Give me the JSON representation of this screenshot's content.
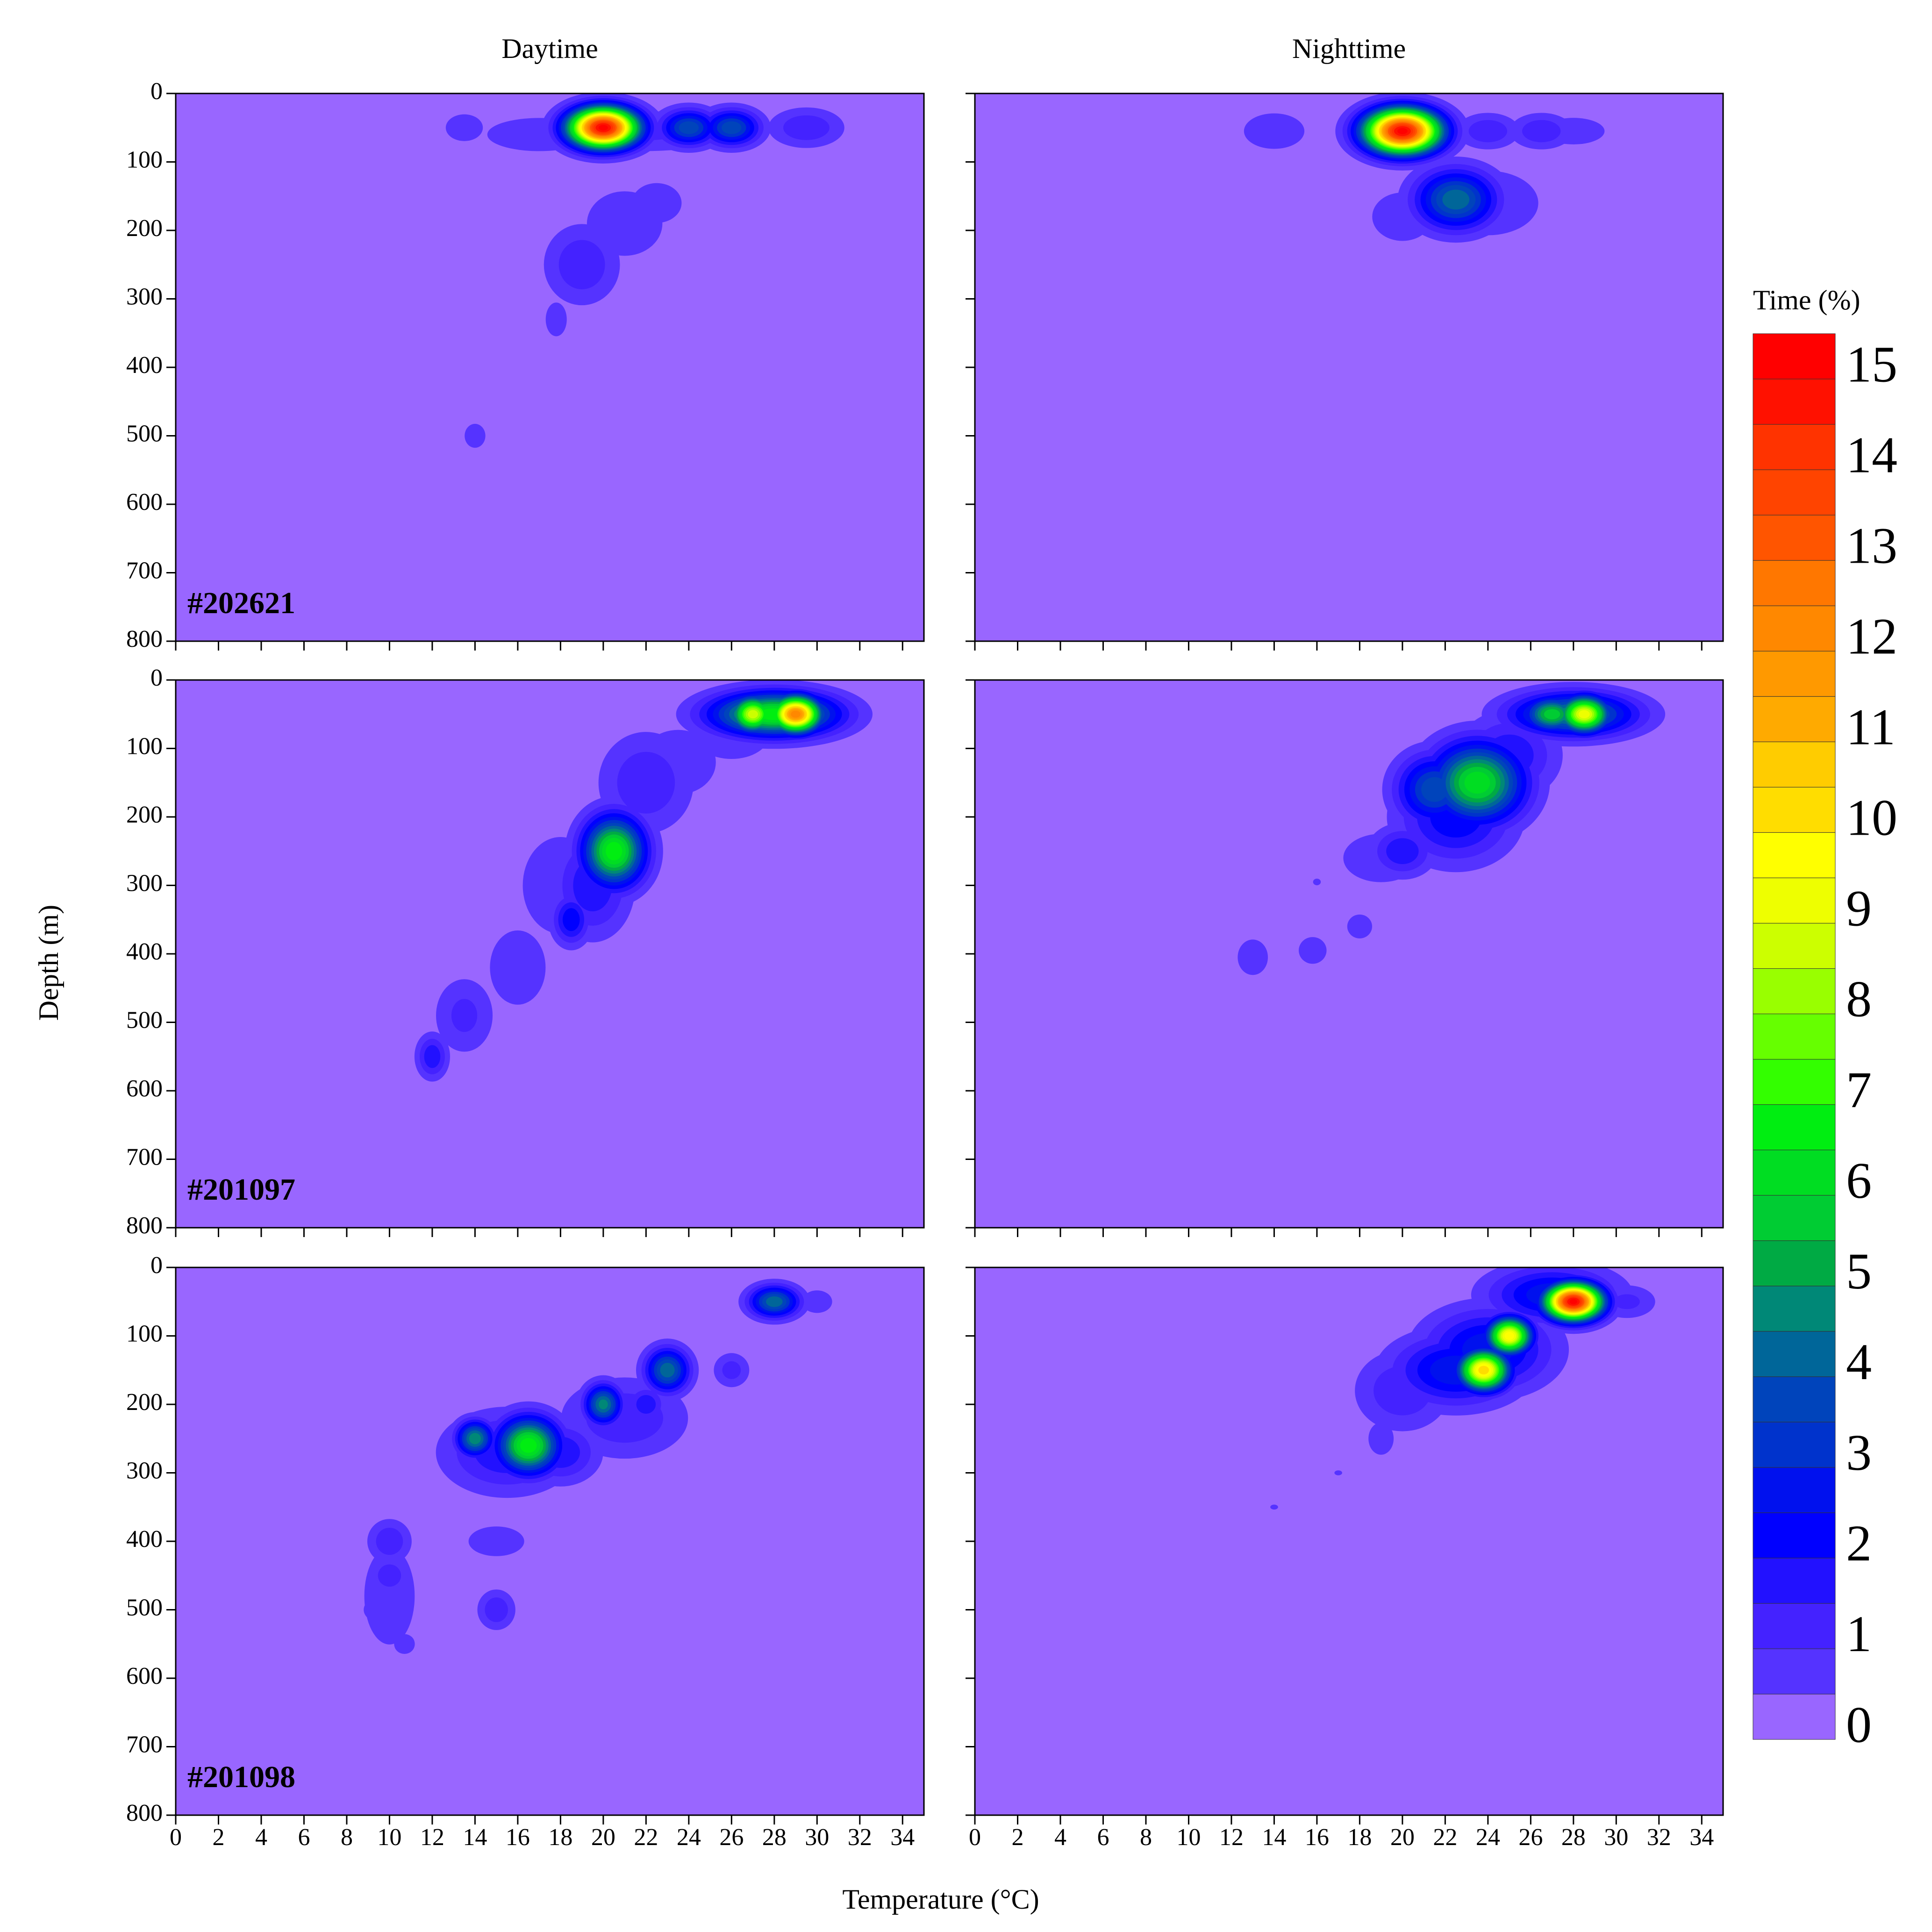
{
  "figure": {
    "xlabel": "Temperature (°C)",
    "ylabel": "Depth (m)"
  },
  "colorbar": {
    "title": "Time (%)",
    "levels": [
      0,
      0.5,
      1,
      1.5,
      2,
      2.5,
      3,
      3.5,
      4,
      4.5,
      5,
      5.5,
      6,
      6.5,
      7,
      7.5,
      8,
      8.5,
      9,
      9.5,
      10,
      10.5,
      11,
      11.5,
      12,
      12.5,
      13,
      13.5,
      14,
      14.5,
      15,
      15.5
    ],
    "colors": [
      "#9966ff",
      "#5533ff",
      "#4422ff",
      "#2211ff",
      "#0000ff",
      "#0011ee",
      "#0033cc",
      "#0044bb",
      "#006699",
      "#008877",
      "#00aa44",
      "#00cc33",
      "#00dd22",
      "#00ee11",
      "#33ff00",
      "#66ff00",
      "#99ff00",
      "#ccff00",
      "#eeff00",
      "#ffff00",
      "#ffdd00",
      "#ffcc00",
      "#ffaa00",
      "#ff9900",
      "#ff8800",
      "#ff7700",
      "#ff5500",
      "#ff4400",
      "#ff3300",
      "#ff1100",
      "#ff0000"
    ],
    "ticks": [
      0,
      1,
      2,
      3,
      4,
      5,
      6,
      7,
      8,
      9,
      10,
      11,
      12,
      13,
      14,
      15
    ]
  },
  "chart_data": [
    {
      "type": "contour",
      "title": "Daytime",
      "label": "#202621",
      "xlim": [
        0,
        35
      ],
      "ylim": [
        800,
        0
      ],
      "xticks": [
        0,
        2,
        4,
        6,
        8,
        10,
        12,
        14,
        16,
        18,
        20,
        22,
        24,
        26,
        28,
        30,
        32,
        34
      ],
      "yticks": [
        0,
        100,
        200,
        300,
        400,
        500,
        600,
        700,
        800
      ],
      "peaks": [
        {
          "x": 20,
          "y": 50,
          "value": 15.3,
          "spread": [
            1.1,
            20
          ]
        },
        {
          "x": 24,
          "y": 50,
          "value": 4,
          "spread": [
            0.9,
            18
          ]
        },
        {
          "x": 26,
          "y": 50,
          "value": 4,
          "spread": [
            0.9,
            18
          ]
        },
        {
          "x": 29.5,
          "y": 50,
          "value": 1.5,
          "spread": [
            1.2,
            20
          ]
        },
        {
          "x": 13.5,
          "y": 50,
          "value": 0.9,
          "spread": [
            0.8,
            18
          ]
        },
        {
          "x": 22,
          "y": 55,
          "value": 1.2,
          "spread": [
            3,
            22
          ]
        },
        {
          "x": 17,
          "y": 60,
          "value": 0.8,
          "spread": [
            2.5,
            25
          ]
        },
        {
          "x": 19,
          "y": 250,
          "value": 1.5,
          "spread": [
            1.2,
            40
          ]
        },
        {
          "x": 21,
          "y": 190,
          "value": 1,
          "spread": [
            1.5,
            40
          ]
        },
        {
          "x": 22.5,
          "y": 160,
          "value": 0.8,
          "spread": [
            1.2,
            30
          ]
        },
        {
          "x": 17.8,
          "y": 330,
          "value": 0.7,
          "spread": [
            0.6,
            30
          ]
        },
        {
          "x": 14,
          "y": 500,
          "value": 0.8,
          "spread": [
            0.5,
            18
          ]
        }
      ]
    },
    {
      "type": "contour",
      "title": "Nighttime",
      "xlim": [
        0,
        35
      ],
      "ylim": [
        800,
        0
      ],
      "xticks": [
        0,
        2,
        4,
        6,
        8,
        10,
        12,
        14,
        16,
        18,
        20,
        22,
        24,
        26,
        28,
        30,
        32,
        34
      ],
      "yticks": [
        0,
        100,
        200,
        300,
        400,
        500,
        600,
        700,
        800
      ],
      "peaks": [
        {
          "x": 20,
          "y": 55,
          "value": 15.3,
          "spread": [
            1.2,
            22
          ]
        },
        {
          "x": 22.5,
          "y": 155,
          "value": 4.5,
          "spread": [
            1.3,
            30
          ]
        },
        {
          "x": 24,
          "y": 55,
          "value": 1.5,
          "spread": [
            1,
            18
          ]
        },
        {
          "x": 26.5,
          "y": 55,
          "value": 1.5,
          "spread": [
            1,
            18
          ]
        },
        {
          "x": 14,
          "y": 55,
          "value": 1,
          "spread": [
            1.2,
            22
          ]
        },
        {
          "x": 28,
          "y": 55,
          "value": 0.8,
          "spread": [
            1.5,
            20
          ]
        },
        {
          "x": 20,
          "y": 180,
          "value": 1,
          "spread": [
            1.2,
            30
          ]
        },
        {
          "x": 24,
          "y": 160,
          "value": 1,
          "spread": [
            2,
            40
          ]
        }
      ]
    },
    {
      "type": "contour",
      "label": "#201097",
      "xlim": [
        0,
        35
      ],
      "ylim": [
        800,
        0
      ],
      "xticks": [
        0,
        2,
        4,
        6,
        8,
        10,
        12,
        14,
        16,
        18,
        20,
        22,
        24,
        26,
        28,
        30,
        32,
        34
      ],
      "yticks": [
        0,
        100,
        200,
        300,
        400,
        500,
        600,
        700,
        800
      ],
      "peaks": [
        {
          "x": 29,
          "y": 50,
          "value": 12.5,
          "spread": [
            0.8,
            18
          ]
        },
        {
          "x": 27,
          "y": 50,
          "value": 9,
          "spread": [
            0.7,
            18
          ]
        },
        {
          "x": 28,
          "y": 50,
          "value": 7,
          "spread": [
            2,
            22
          ]
        },
        {
          "x": 26,
          "y": 80,
          "value": 1,
          "spread": [
            1.5,
            30
          ]
        },
        {
          "x": 20.5,
          "y": 250,
          "value": 7,
          "spread": [
            1,
            35
          ]
        },
        {
          "x": 19.5,
          "y": 300,
          "value": 2,
          "spread": [
            1.2,
            50
          ]
        },
        {
          "x": 18.5,
          "y": 350,
          "value": 2.5,
          "spread": [
            0.6,
            25
          ]
        },
        {
          "x": 22,
          "y": 150,
          "value": 1.5,
          "spread": [
            1.5,
            50
          ]
        },
        {
          "x": 23.5,
          "y": 120,
          "value": 1,
          "spread": [
            1.5,
            40
          ]
        },
        {
          "x": 18,
          "y": 300,
          "value": 1,
          "spread": [
            1.5,
            60
          ]
        },
        {
          "x": 16,
          "y": 420,
          "value": 0.9,
          "spread": [
            1.2,
            50
          ]
        },
        {
          "x": 13.5,
          "y": 490,
          "value": 1.2,
          "spread": [
            1,
            40
          ]
        },
        {
          "x": 12,
          "y": 550,
          "value": 2,
          "spread": [
            0.5,
            22
          ]
        }
      ]
    },
    {
      "type": "contour",
      "xlim": [
        0,
        35
      ],
      "ylim": [
        800,
        0
      ],
      "xticks": [
        0,
        2,
        4,
        6,
        8,
        10,
        12,
        14,
        16,
        18,
        20,
        22,
        24,
        26,
        28,
        30,
        32,
        34
      ],
      "yticks": [
        0,
        100,
        200,
        300,
        400,
        500,
        600,
        700,
        800
      ],
      "peaks": [
        {
          "x": 28.5,
          "y": 50,
          "value": 9.5,
          "spread": [
            0.8,
            18
          ]
        },
        {
          "x": 27,
          "y": 50,
          "value": 6,
          "spread": [
            0.9,
            18
          ]
        },
        {
          "x": 28,
          "y": 50,
          "value": 5,
          "spread": [
            2,
            22
          ]
        },
        {
          "x": 23.5,
          "y": 150,
          "value": 6.5,
          "spread": [
            1.5,
            40
          ]
        },
        {
          "x": 21.5,
          "y": 160,
          "value": 4,
          "spread": [
            1.2,
            35
          ]
        },
        {
          "x": 22.5,
          "y": 200,
          "value": 2.5,
          "spread": [
            1.8,
            45
          ]
        },
        {
          "x": 25,
          "y": 110,
          "value": 2,
          "spread": [
            1.5,
            40
          ]
        },
        {
          "x": 20,
          "y": 250,
          "value": 2,
          "spread": [
            1,
            25
          ]
        },
        {
          "x": 19,
          "y": 260,
          "value": 1,
          "spread": [
            1.5,
            30
          ]
        },
        {
          "x": 16,
          "y": 295,
          "value": 0.6,
          "spread": [
            0.3,
            8
          ]
        },
        {
          "x": 18,
          "y": 360,
          "value": 0.8,
          "spread": [
            0.6,
            18
          ]
        },
        {
          "x": 15.8,
          "y": 395,
          "value": 0.9,
          "spread": [
            0.6,
            18
          ]
        },
        {
          "x": 13,
          "y": 405,
          "value": 1,
          "spread": [
            0.6,
            22
          ]
        }
      ]
    },
    {
      "type": "contour",
      "label": "#201098",
      "xlim": [
        0,
        35
      ],
      "ylim": [
        800,
        0
      ],
      "xticks": [
        0,
        2,
        4,
        6,
        8,
        10,
        12,
        14,
        16,
        18,
        20,
        22,
        24,
        26,
        28,
        30,
        32,
        34
      ],
      "yticks": [
        0,
        100,
        200,
        300,
        400,
        500,
        600,
        700,
        800
      ],
      "peaks": [
        {
          "x": 28,
          "y": 50,
          "value": 4.5,
          "spread": [
            0.8,
            16
          ]
        },
        {
          "x": 30,
          "y": 50,
          "value": 1,
          "spread": [
            0.6,
            14
          ]
        },
        {
          "x": 23,
          "y": 150,
          "value": 4.5,
          "spread": [
            0.7,
            22
          ]
        },
        {
          "x": 26,
          "y": 150,
          "value": 1.3,
          "spread": [
            0.6,
            18
          ]
        },
        {
          "x": 20,
          "y": 200,
          "value": 4.8,
          "spread": [
            0.6,
            20
          ]
        },
        {
          "x": 22,
          "y": 200,
          "value": 2,
          "spread": [
            0.6,
            18
          ]
        },
        {
          "x": 21,
          "y": 220,
          "value": 1.5,
          "spread": [
            2,
            40
          ]
        },
        {
          "x": 16.5,
          "y": 260,
          "value": 7,
          "spread": [
            1,
            28
          ]
        },
        {
          "x": 14,
          "y": 250,
          "value": 5,
          "spread": [
            0.6,
            18
          ]
        },
        {
          "x": 18,
          "y": 270,
          "value": 2,
          "spread": [
            1.2,
            30
          ]
        },
        {
          "x": 15.5,
          "y": 270,
          "value": 2,
          "spread": [
            2,
            40
          ]
        },
        {
          "x": 10,
          "y": 400,
          "value": 1.5,
          "spread": [
            0.7,
            22
          ]
        },
        {
          "x": 10,
          "y": 450,
          "value": 1.5,
          "spread": [
            0.6,
            18
          ]
        },
        {
          "x": 10,
          "y": 480,
          "value": 1,
          "spread": [
            1,
            60
          ]
        },
        {
          "x": 9.5,
          "y": 500,
          "value": 1,
          "spread": [
            0.6,
            15
          ]
        },
        {
          "x": 15,
          "y": 400,
          "value": 0.9,
          "spread": [
            1.2,
            20
          ]
        },
        {
          "x": 15,
          "y": 500,
          "value": 1.5,
          "spread": [
            0.6,
            20
          ]
        },
        {
          "x": 10.7,
          "y": 550,
          "value": 0.8,
          "spread": [
            0.5,
            15
          ]
        }
      ]
    },
    {
      "type": "contour",
      "xlim": [
        0,
        35
      ],
      "ylim": [
        800,
        0
      ],
      "xticks": [
        0,
        2,
        4,
        6,
        8,
        10,
        12,
        14,
        16,
        18,
        20,
        22,
        24,
        26,
        28,
        30,
        32,
        34
      ],
      "yticks": [
        0,
        100,
        200,
        300,
        400,
        500,
        600,
        700,
        800
      ],
      "peaks": [
        {
          "x": 28,
          "y": 50,
          "value": 15.3,
          "spread": [
            0.9,
            18
          ]
        },
        {
          "x": 27,
          "y": 40,
          "value": 3,
          "spread": [
            2,
            28
          ]
        },
        {
          "x": 30.5,
          "y": 50,
          "value": 1.2,
          "spread": [
            1,
            18
          ]
        },
        {
          "x": 23.8,
          "y": 150,
          "value": 10.5,
          "spread": [
            0.8,
            20
          ]
        },
        {
          "x": 25,
          "y": 100,
          "value": 10,
          "spread": [
            0.7,
            18
          ]
        },
        {
          "x": 22.5,
          "y": 150,
          "value": 3,
          "spread": [
            2,
            35
          ]
        },
        {
          "x": 24,
          "y": 120,
          "value": 3,
          "spread": [
            2,
            40
          ]
        },
        {
          "x": 20,
          "y": 180,
          "value": 1.5,
          "spread": [
            1.5,
            40
          ]
        },
        {
          "x": 19,
          "y": 250,
          "value": 1,
          "spread": [
            0.5,
            20
          ]
        },
        {
          "x": 17,
          "y": 300,
          "value": 0.6,
          "spread": [
            0.3,
            6
          ]
        },
        {
          "x": 14,
          "y": 350,
          "value": 0.6,
          "spread": [
            0.3,
            6
          ]
        }
      ]
    }
  ]
}
